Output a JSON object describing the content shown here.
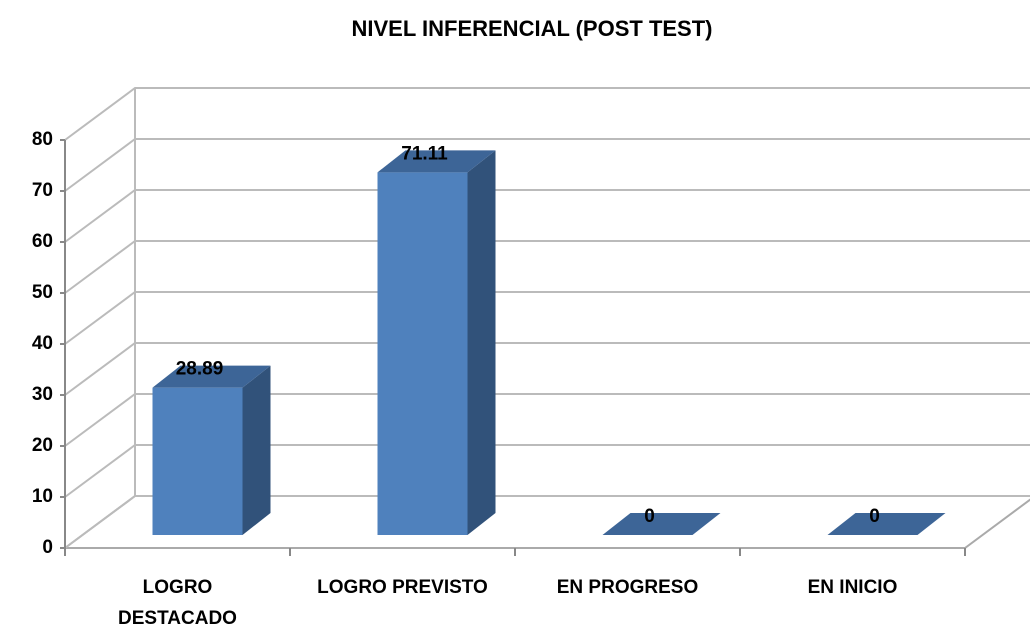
{
  "chart_data": {
    "type": "bar3d",
    "title": "NIVEL INFERENCIAL (POST TEST)",
    "categories": [
      "LOGRO DESTACADO",
      "LOGRO PREVISTO",
      "EN PROGRESO",
      "EN INICIO"
    ],
    "values": [
      28.89,
      71.11,
      0,
      0
    ],
    "color": "#4f81bd",
    "ylim": [
      0,
      80
    ],
    "yticks": [
      0,
      10,
      20,
      30,
      40,
      50,
      60,
      70,
      80
    ],
    "grid": true
  }
}
